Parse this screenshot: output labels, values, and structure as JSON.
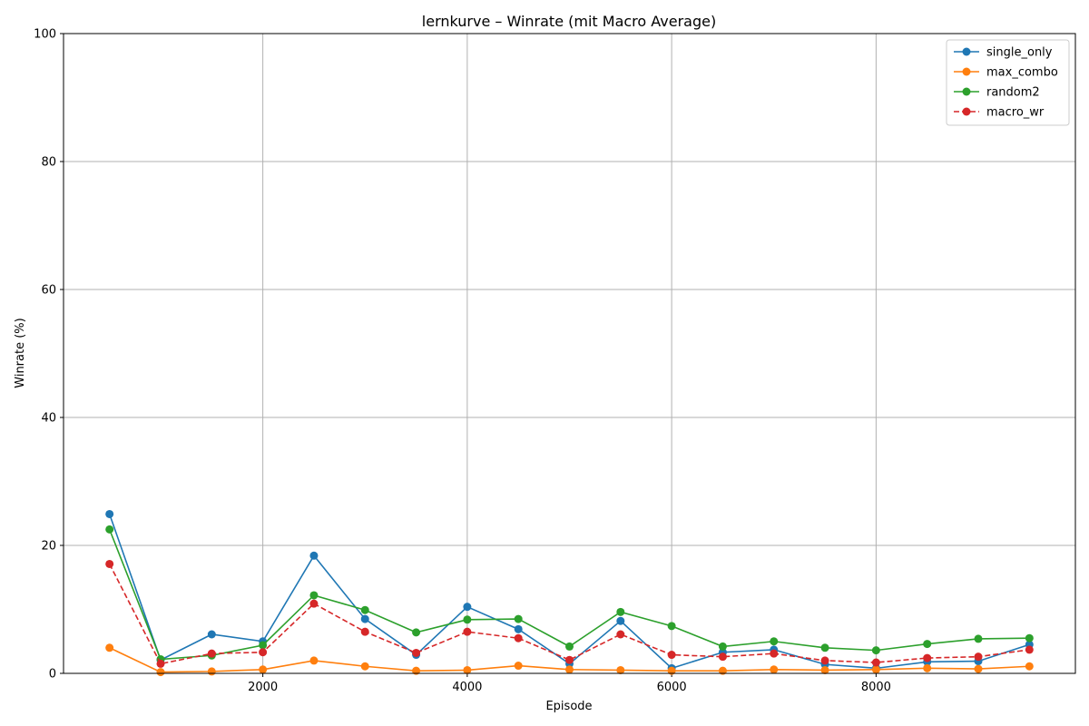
{
  "chart_data": {
    "type": "line",
    "title": "lernkurve – Winrate (mit Macro Average)",
    "xlabel": "Episode",
    "ylabel": "Winrate (%)",
    "xlim": [
      50,
      9950
    ],
    "ylim": [
      0,
      100
    ],
    "x_ticks": [
      2000,
      4000,
      6000,
      8000
    ],
    "y_ticks": [
      0,
      20,
      40,
      60,
      80,
      100
    ],
    "grid": true,
    "legend_position": "top-right",
    "x": [
      500,
      1000,
      1500,
      2000,
      2500,
      3000,
      3500,
      4000,
      4500,
      5000,
      5500,
      6000,
      6500,
      7000,
      7500,
      8000,
      8500,
      9000,
      9500
    ],
    "series": [
      {
        "name": "single_only",
        "color": "#1f77b4",
        "dashed": false,
        "values": [
          24.9,
          2.1,
          6.1,
          5.0,
          18.4,
          8.5,
          2.9,
          10.4,
          6.9,
          1.5,
          8.2,
          0.8,
          3.3,
          3.7,
          1.4,
          0.8,
          1.8,
          1.9,
          4.5
        ]
      },
      {
        "name": "max_combo",
        "color": "#ff7f0e",
        "dashed": false,
        "values": [
          4.0,
          0.2,
          0.3,
          0.6,
          2.0,
          1.1,
          0.4,
          0.5,
          1.2,
          0.6,
          0.5,
          0.4,
          0.4,
          0.6,
          0.5,
          0.6,
          0.8,
          0.7,
          1.1
        ]
      },
      {
        "name": "random2",
        "color": "#2ca02c",
        "dashed": false,
        "values": [
          22.5,
          2.2,
          2.8,
          4.4,
          12.2,
          9.9,
          6.4,
          8.4,
          8.5,
          4.2,
          9.6,
          7.4,
          4.2,
          5.0,
          4.0,
          3.6,
          4.6,
          5.4,
          5.5
        ]
      },
      {
        "name": "macro_wr",
        "color": "#d62728",
        "dashed": true,
        "values": [
          17.1,
          1.5,
          3.1,
          3.3,
          10.9,
          6.5,
          3.2,
          6.5,
          5.5,
          2.1,
          6.1,
          2.9,
          2.6,
          3.1,
          2.0,
          1.7,
          2.4,
          2.6,
          3.7
        ]
      }
    ]
  }
}
